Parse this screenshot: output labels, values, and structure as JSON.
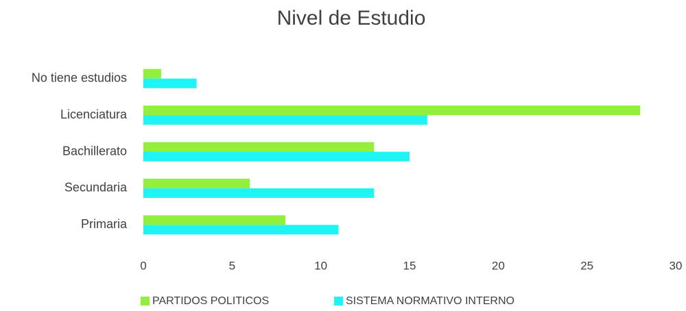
{
  "chart_data": {
    "type": "barh",
    "title": "Nivel de Estudio",
    "categories": [
      "No tiene estudios",
      "Licenciatura",
      "Bachillerato",
      "Secundaria",
      "Primaria"
    ],
    "series": [
      {
        "name": "PARTIDOS POLITICOS",
        "color": "#92f03c",
        "values": [
          1,
          28,
          13,
          6,
          8
        ]
      },
      {
        "name": "SISTEMA NORMATIVO INTERNO",
        "color": "#1ef4f4",
        "values": [
          3,
          16,
          15,
          13,
          11
        ]
      }
    ],
    "xlim": [
      0,
      30
    ],
    "xticks": [
      0,
      5,
      10,
      15,
      20,
      25,
      30
    ],
    "grid": false,
    "legend": "bottom"
  }
}
